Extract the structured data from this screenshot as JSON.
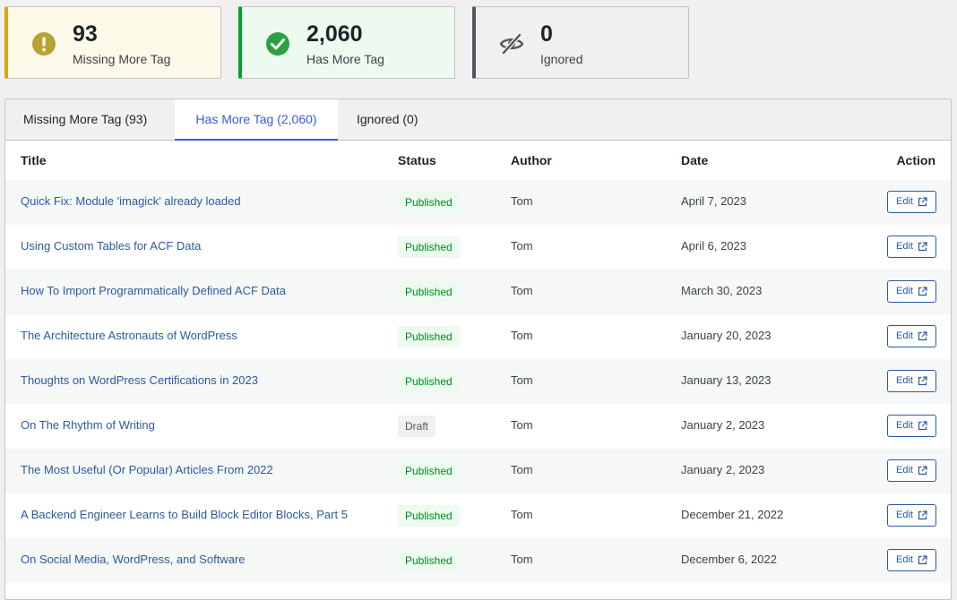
{
  "summary": {
    "missing": {
      "count": "93",
      "label": "Missing More Tag",
      "icon": "warning-icon",
      "color": "#dba617"
    },
    "has": {
      "count": "2,060",
      "label": "Has More Tag",
      "icon": "check-circle-icon",
      "color": "#00a32a"
    },
    "ignored": {
      "count": "0",
      "label": "Ignored",
      "icon": "eye-slash-icon",
      "color": "#50575e"
    }
  },
  "tabs": [
    {
      "label": "Missing More Tag (93)"
    },
    {
      "label": "Has More Tag (2,060)",
      "active": true
    },
    {
      "label": "Ignored (0)"
    }
  ],
  "table": {
    "headers": {
      "title": "Title",
      "status": "Status",
      "author": "Author",
      "date": "Date",
      "action": "Action"
    },
    "edit_label": "Edit",
    "rows": [
      {
        "title": "Quick Fix: Module 'imagick' already loaded",
        "status": "Published",
        "author": "Tom",
        "date": "April 7, 2023"
      },
      {
        "title": "Using Custom Tables for ACF Data",
        "status": "Published",
        "author": "Tom",
        "date": "April 6, 2023"
      },
      {
        "title": "How To Import Programmatically Defined ACF Data",
        "status": "Published",
        "author": "Tom",
        "date": "March 30, 2023"
      },
      {
        "title": "The Architecture Astronauts of WordPress",
        "status": "Published",
        "author": "Tom",
        "date": "January 20, 2023"
      },
      {
        "title": "Thoughts on WordPress Certifications in 2023",
        "status": "Published",
        "author": "Tom",
        "date": "January 13, 2023"
      },
      {
        "title": "On The Rhythm of Writing",
        "status": "Draft",
        "author": "Tom",
        "date": "January 2, 2023"
      },
      {
        "title": "The Most Useful (Or Popular) Articles From 2022",
        "status": "Published",
        "author": "Tom",
        "date": "January 2, 2023"
      },
      {
        "title": "A Backend Engineer Learns to Build Block Editor Blocks, Part 5",
        "status": "Published",
        "author": "Tom",
        "date": "December 21, 2022"
      },
      {
        "title": "On Social Media, WordPress, and Software",
        "status": "Published",
        "author": "Tom",
        "date": "December 6, 2022"
      }
    ]
  }
}
